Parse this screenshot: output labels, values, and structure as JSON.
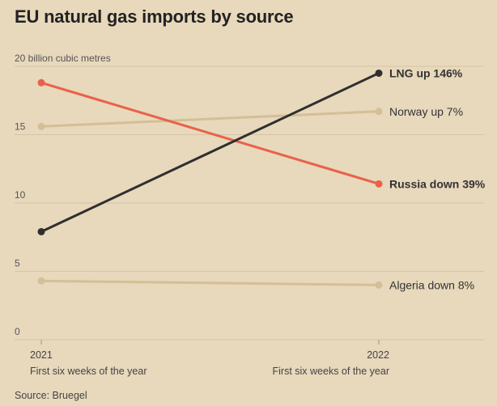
{
  "title": "EU natural gas imports by source",
  "source": "Source: Bruegel",
  "chart_data": {
    "type": "line",
    "title": "EU natural gas imports by source",
    "ylabel": "billion cubic metres",
    "ylim": [
      0,
      20
    ],
    "yticks": [
      {
        "value": 0,
        "label": "0"
      },
      {
        "value": 5,
        "label": "5"
      },
      {
        "value": 10,
        "label": "10"
      },
      {
        "value": 15,
        "label": "15"
      },
      {
        "value": 20,
        "label": "20 billion cubic metres"
      }
    ],
    "x": [
      {
        "year": "2021",
        "sub": "First six weeks of the year"
      },
      {
        "year": "2022",
        "sub": "First six weeks of the year"
      }
    ],
    "series": [
      {
        "name": "Norway",
        "label": "Norway up 7%",
        "values": [
          15.6,
          16.7
        ],
        "color": "#d4bf96",
        "bold": false
      },
      {
        "name": "Algeria",
        "label": "Algeria down 8%",
        "values": [
          4.3,
          4.0
        ],
        "color": "#d4bf96",
        "bold": false
      },
      {
        "name": "Russia",
        "label": "Russia down 39%",
        "values": [
          18.8,
          11.4
        ],
        "color": "#e8624a",
        "bold": true
      },
      {
        "name": "LNG",
        "label": "LNG up 146%",
        "values": [
          7.9,
          19.5
        ],
        "color": "#2f2f2f",
        "bold": true
      }
    ]
  }
}
